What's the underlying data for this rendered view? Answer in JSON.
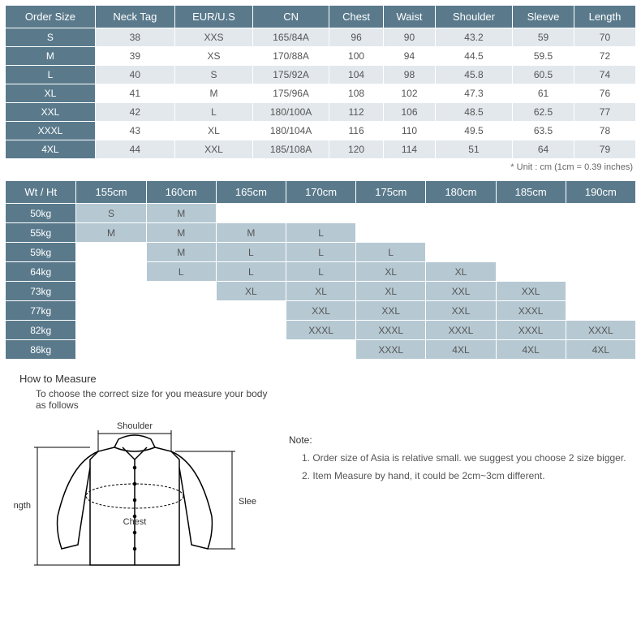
{
  "size_table": {
    "headers": [
      "Order Size",
      "Neck Tag",
      "EUR/U.S",
      "CN",
      "Chest",
      "Waist",
      "Shoulder",
      "Sleeve",
      "Length"
    ],
    "rows": [
      [
        "S",
        "38",
        "XXS",
        "165/84A",
        "96",
        "90",
        "43.2",
        "59",
        "70"
      ],
      [
        "M",
        "39",
        "XS",
        "170/88A",
        "100",
        "94",
        "44.5",
        "59.5",
        "72"
      ],
      [
        "L",
        "40",
        "S",
        "175/92A",
        "104",
        "98",
        "45.8",
        "60.5",
        "74"
      ],
      [
        "XL",
        "41",
        "M",
        "175/96A",
        "108",
        "102",
        "47.3",
        "61",
        "76"
      ],
      [
        "XXL",
        "42",
        "L",
        "180/100A",
        "112",
        "106",
        "48.5",
        "62.5",
        "77"
      ],
      [
        "XXXL",
        "43",
        "XL",
        "180/104A",
        "116",
        "110",
        "49.5",
        "63.5",
        "78"
      ],
      [
        "4XL",
        "44",
        "XXL",
        "185/108A",
        "120",
        "114",
        "51",
        "64",
        "79"
      ]
    ],
    "unit_note": "* Unit : cm (1cm = 0.39 inches)"
  },
  "rec_table": {
    "corner": "Wt / Ht",
    "heights": [
      "155cm",
      "160cm",
      "165cm",
      "170cm",
      "175cm",
      "180cm",
      "185cm",
      "190cm"
    ],
    "weights": [
      "50kg",
      "55kg",
      "59kg",
      "64kg",
      "73kg",
      "77kg",
      "82kg",
      "86kg"
    ],
    "cells": [
      [
        "S",
        "M",
        "",
        "",
        "",
        "",
        "",
        ""
      ],
      [
        "M",
        "M",
        "M",
        "L",
        "",
        "",
        "",
        ""
      ],
      [
        "",
        "M",
        "L",
        "L",
        "L",
        "",
        "",
        ""
      ],
      [
        "",
        "L",
        "L",
        "L",
        "XL",
        "XL",
        "",
        ""
      ],
      [
        "",
        "",
        "XL",
        "XL",
        "XL",
        "XXL",
        "XXL",
        ""
      ],
      [
        "",
        "",
        "",
        "XXL",
        "XXL",
        "XXL",
        "XXXL",
        ""
      ],
      [
        "",
        "",
        "",
        "XXXL",
        "XXXL",
        "XXXL",
        "XXXL",
        "XXXL"
      ],
      [
        "",
        "",
        "",
        "",
        "XXXL",
        "4XL",
        "4XL",
        "4XL"
      ]
    ]
  },
  "howto": {
    "title": "How to Measure",
    "sub": "To choose the correct size for you measure your body as follows",
    "diagram_labels": {
      "shoulder": "Shoulder",
      "length": "Length",
      "chest": "Chest",
      "sleeve": "Sleeve"
    },
    "note_title": "Note:",
    "notes": [
      "1. Order size of Asia is relative small. we suggest you choose 2 size bigger.",
      "2. Item Measure by hand, it could be 2cm~3cm different."
    ]
  },
  "colors": {
    "header_bg": "#5a7a8c",
    "stripe_bg": "#e2e8ec",
    "filled_bg": "#b6c9d3",
    "text": "#555555"
  }
}
